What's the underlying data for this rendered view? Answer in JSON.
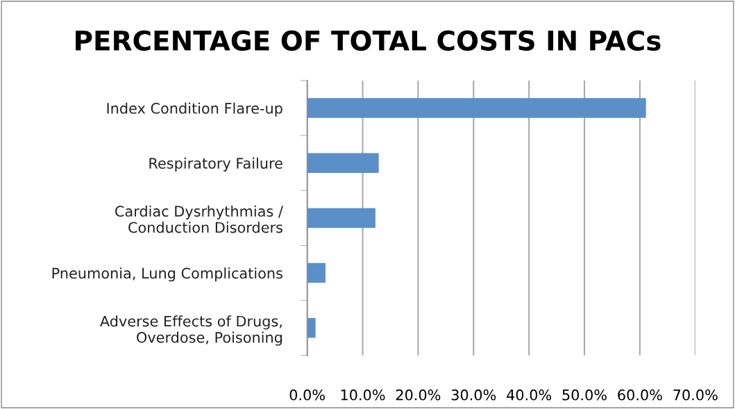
{
  "chart_data": {
    "type": "bar",
    "orientation": "horizontal",
    "title": "PERCENTAGE OF TOTAL COSTS IN PACs",
    "categories": [
      "Index Condition Flare-up",
      "Respiratory Failure",
      "Cardiac Dysrhythmias /\nConduction Disorders",
      "Pneumonia, Lung Complications",
      "Adverse Effects of Drugs,\nOverdose, Poisoning"
    ],
    "values": [
      61.1,
      12.9,
      12.3,
      3.3,
      1.5
    ],
    "color": "#5b8fc7",
    "xlim": [
      0,
      70
    ],
    "xticks": [
      {
        "value": 0,
        "label": "0.0%"
      },
      {
        "value": 10,
        "label": "10.0%"
      },
      {
        "value": 20,
        "label": "20.0%"
      },
      {
        "value": 30,
        "label": "30.0%"
      },
      {
        "value": 40,
        "label": "40.0%"
      },
      {
        "value": 50,
        "label": "50.0%"
      },
      {
        "value": 60,
        "label": "60.0%"
      },
      {
        "value": 70,
        "label": "70.0%"
      }
    ],
    "grid": "x",
    "legend": false
  }
}
